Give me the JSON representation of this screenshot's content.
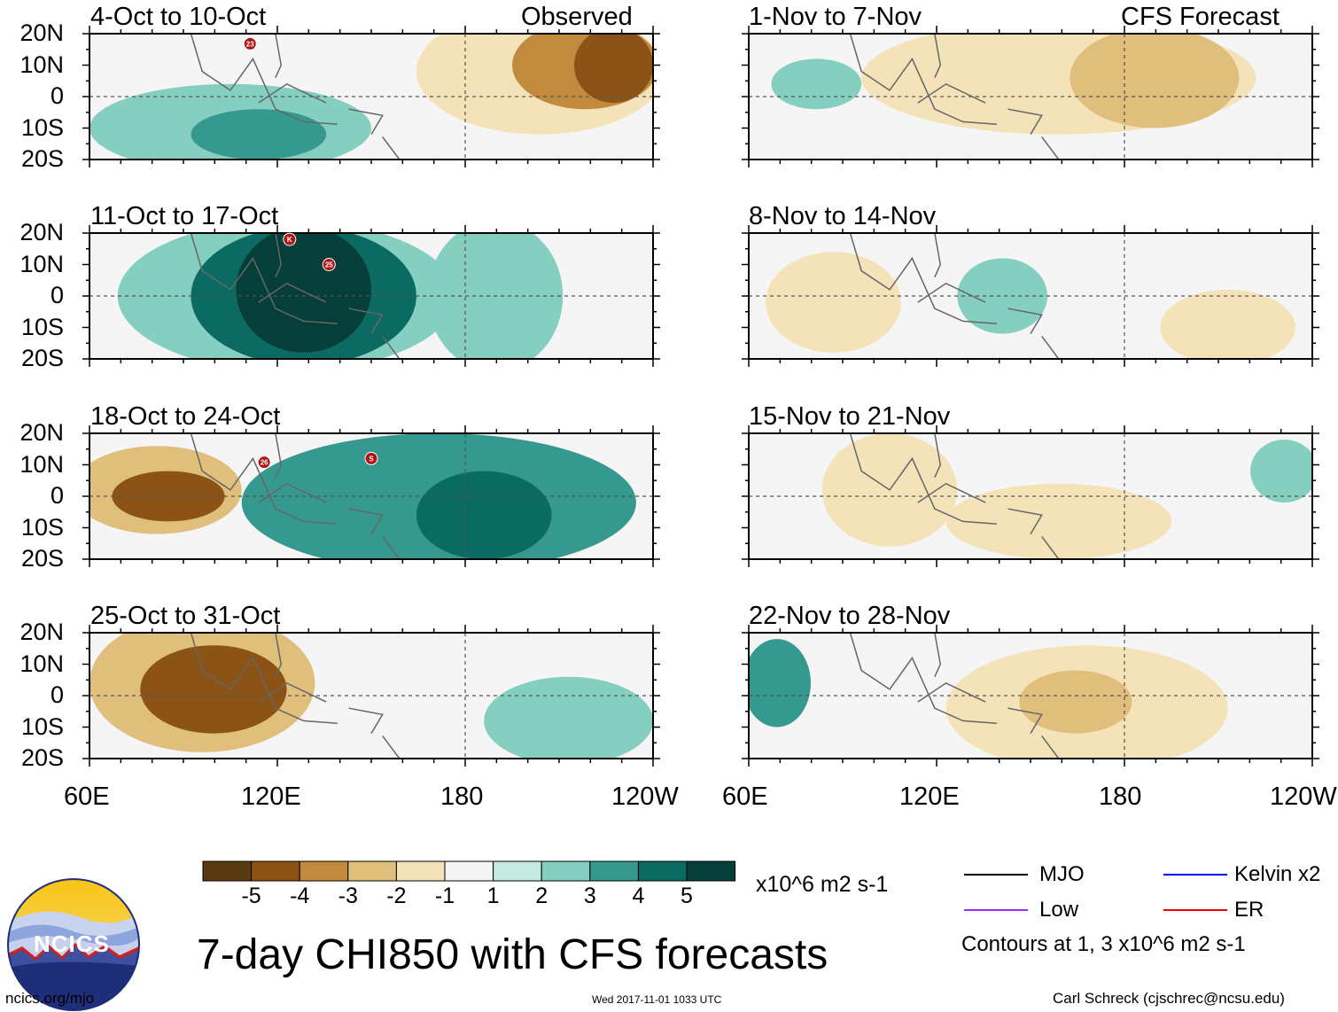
{
  "chart_data": {
    "type": "map-panels",
    "title": "7-day CHI850 with CFS forecasts",
    "variable": "850-hPa velocity potential anomaly (CHI850)",
    "units": "x10^6 m2 s-1",
    "lat_labels": [
      "20N",
      "10N",
      "0",
      "10S",
      "20S"
    ],
    "lon_labels": [
      "60E",
      "120E",
      "180",
      "120W"
    ],
    "lat_range": [
      -20,
      20
    ],
    "lon_range": [
      60,
      240
    ],
    "left_column_label": "Observed",
    "right_column_label": "CFS Forecast",
    "panels": [
      {
        "period": "4-Oct to 10-Oct",
        "kind": "observed"
      },
      {
        "period": "11-Oct to 17-Oct",
        "kind": "observed"
      },
      {
        "period": "18-Oct to 24-Oct",
        "kind": "observed"
      },
      {
        "period": "25-Oct to 31-Oct",
        "kind": "observed"
      },
      {
        "period": "1-Nov to 7-Nov",
        "kind": "forecast"
      },
      {
        "period": "8-Nov to 14-Nov",
        "kind": "forecast"
      },
      {
        "period": "15-Nov to 21-Nov",
        "kind": "forecast"
      },
      {
        "period": "22-Nov to 28-Nov",
        "kind": "forecast"
      }
    ],
    "storm_markers": [
      {
        "panel": "4-Oct to 10-Oct",
        "label": "23"
      },
      {
        "panel": "11-Oct to 17-Oct",
        "label": "K"
      },
      {
        "panel": "11-Oct to 17-Oct",
        "label": "25"
      },
      {
        "panel": "18-Oct to 24-Oct",
        "label": "26"
      },
      {
        "panel": "18-Oct to 24-Oct",
        "label": "S"
      }
    ],
    "colorbar": {
      "ticks": [
        "-5",
        "-4",
        "-3",
        "-2",
        "-1",
        "1",
        "2",
        "3",
        "4",
        "5"
      ],
      "colors": [
        "#5a3a12",
        "#8b5316",
        "#c18a3d",
        "#e0bf7c",
        "#f4e2b8",
        "#f5f5f5",
        "#c6e9df",
        "#84cfc0",
        "#35998f",
        "#0b6b62",
        "#063f3a"
      ],
      "units": "x10^6 m2 s-1"
    },
    "contours": [
      {
        "name": "MJO",
        "color": "#000000"
      },
      {
        "name": "Kelvin x2",
        "color": "#0000ee"
      },
      {
        "name": "Low",
        "color": "#9933ee"
      },
      {
        "name": "ER",
        "color": "#ee0000"
      }
    ],
    "contour_note": "Contours at 1, 3 x10^6 m2 s-1"
  },
  "footer": {
    "logo_text": "NCICS",
    "url": "ncics.org/mjo",
    "timestamp": "Wed 2017-11-01 1033 UTC",
    "author": "Carl Schreck (cjschrec@ncsu.edu)"
  }
}
